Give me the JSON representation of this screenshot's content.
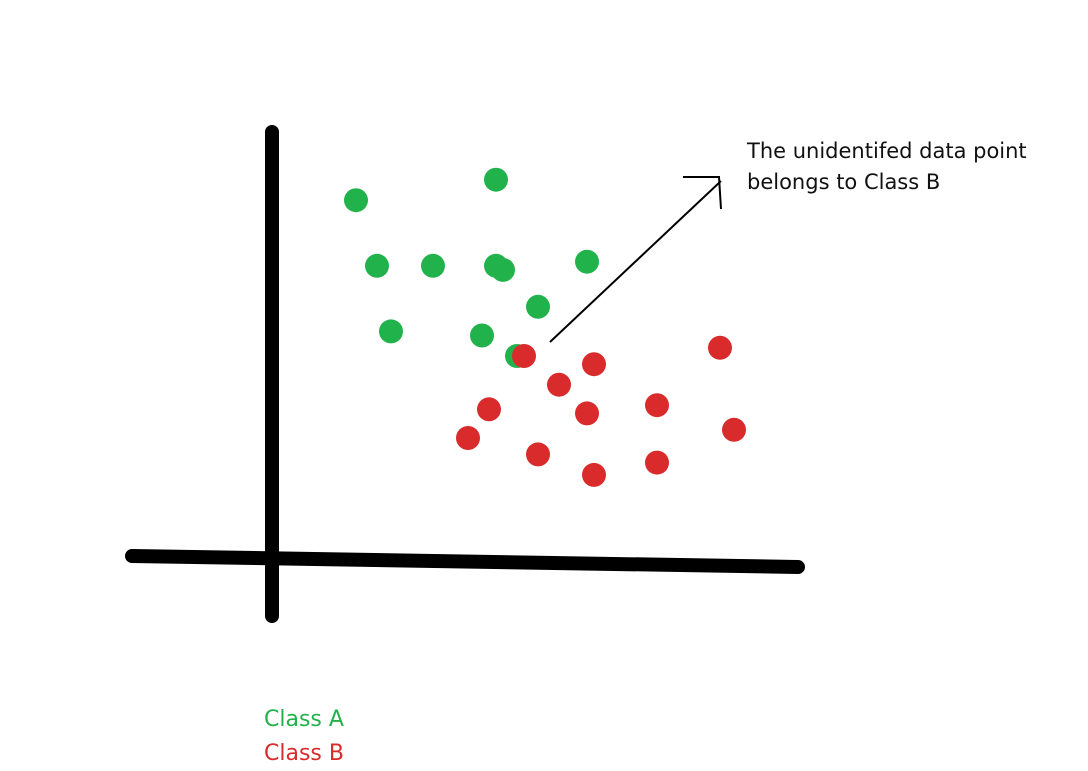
{
  "chart_data": {
    "type": "scatter",
    "title": "",
    "xlabel": "",
    "ylabel": "",
    "grid": false,
    "axes": "arbitrary-units, no ticks",
    "legend_placement": "bottom-left",
    "series": [
      {
        "name": "Class A",
        "color": "#22b24c",
        "points": [
          [
            1.2,
            8.8
          ],
          [
            3.2,
            9.3
          ],
          [
            1.5,
            7.2
          ],
          [
            2.3,
            7.2
          ],
          [
            3.2,
            7.2
          ],
          [
            3.3,
            7.1
          ],
          [
            4.5,
            7.3
          ],
          [
            3.8,
            6.2
          ],
          [
            1.7,
            5.6
          ],
          [
            3.0,
            5.5
          ],
          [
            3.5,
            5.0
          ]
        ]
      },
      {
        "name": "Class B",
        "color": "#d92b2b",
        "points": [
          [
            3.6,
            5.0
          ],
          [
            4.1,
            4.3
          ],
          [
            4.6,
            4.8
          ],
          [
            6.4,
            5.2
          ],
          [
            3.1,
            3.7
          ],
          [
            4.5,
            3.6
          ],
          [
            5.5,
            3.8
          ],
          [
            2.8,
            3.0
          ],
          [
            3.8,
            2.6
          ],
          [
            4.6,
            2.1
          ],
          [
            5.5,
            2.4
          ],
          [
            6.6,
            3.2
          ]
        ]
      }
    ],
    "annotations": [
      {
        "text_lines": [
          "The unidentifed data point",
          "belongs to Class B"
        ],
        "points_to": [
          3.6,
          5.0
        ],
        "color": "#111111"
      }
    ],
    "axis_color": "#000000",
    "arrow_color": "#000000"
  },
  "legend": {
    "items": [
      {
        "label": "Class A",
        "color": "#22b24c"
      },
      {
        "label": "Class B",
        "color": "#d92b2b"
      }
    ]
  }
}
